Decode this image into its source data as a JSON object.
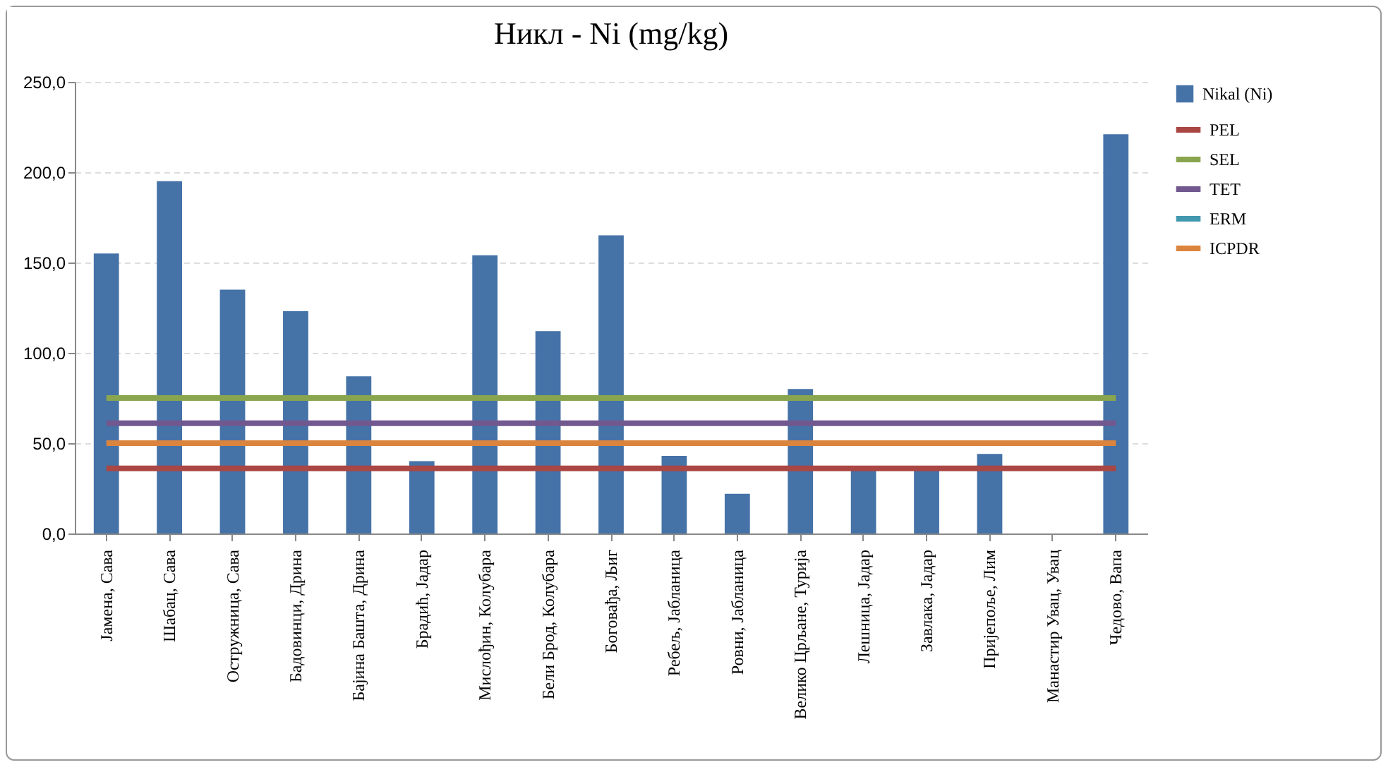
{
  "chart_data": {
    "type": "bar",
    "title": "Никл - Ni (mg/kg)",
    "categories": [
      "Јамена, Сава",
      "Шабац, Сава",
      "Остружница, Сава",
      "Бадовинци, Дрина",
      "Бајина Башта, Дрина",
      "Брадић, Јадар",
      "Мислођин, Колубара",
      "Бели Брод, Колубара",
      "Боговађа, Љиг",
      "Ребељ, Јабланица",
      "Ровни, Јабланица",
      "Велико Црљане, Турија",
      "Лешница, Јадар",
      "Завлака, Јадар",
      "Пријепоље, Лим",
      "Манастир Увац, Увац",
      "Чедово, Вапа"
    ],
    "series": [
      {
        "name": "Nikal (Ni)",
        "color": "#4572a7",
        "values": [
          155,
          195,
          135,
          123,
          87,
          40,
          154,
          112,
          165,
          43,
          22,
          80,
          37,
          37,
          44,
          null,
          221
        ]
      },
      {
        "name": "PEL",
        "type": "line",
        "color": "#aa4643",
        "values": [
          36,
          36,
          36,
          36,
          36,
          36,
          36,
          36,
          36,
          36,
          36,
          36,
          36,
          36,
          36,
          36,
          36
        ]
      },
      {
        "name": "SEL",
        "type": "line",
        "color": "#89a54e",
        "values": [
          75,
          75,
          75,
          75,
          75,
          75,
          75,
          75,
          75,
          75,
          75,
          75,
          75,
          75,
          75,
          75,
          75
        ]
      },
      {
        "name": "TET",
        "type": "line",
        "color": "#71588f",
        "values": [
          61,
          61,
          61,
          61,
          61,
          61,
          61,
          61,
          61,
          61,
          61,
          61,
          61,
          61,
          61,
          61,
          61
        ]
      },
      {
        "name": "ERM",
        "type": "line",
        "color": "#4198af",
        "values": [
          null,
          null,
          null,
          null,
          null,
          null,
          null,
          null,
          null,
          null,
          null,
          null,
          null,
          null,
          null,
          null,
          null
        ]
      },
      {
        "name": "ICPDR",
        "type": "line",
        "color": "#db843d",
        "values": [
          50,
          50,
          50,
          50,
          50,
          50,
          50,
          50,
          50,
          50,
          50,
          50,
          50,
          50,
          50,
          50,
          50
        ]
      }
    ],
    "ylim": [
      0,
      250
    ],
    "yticks": [
      {
        "value": 0,
        "label": "0,0"
      },
      {
        "value": 50,
        "label": "50,0"
      },
      {
        "value": 100,
        "label": "100,0"
      },
      {
        "value": 150,
        "label": "150,0"
      },
      {
        "value": 200,
        "label": "200,0"
      },
      {
        "value": 250,
        "label": "250,0"
      }
    ],
    "grid": "y",
    "legend": "right"
  }
}
